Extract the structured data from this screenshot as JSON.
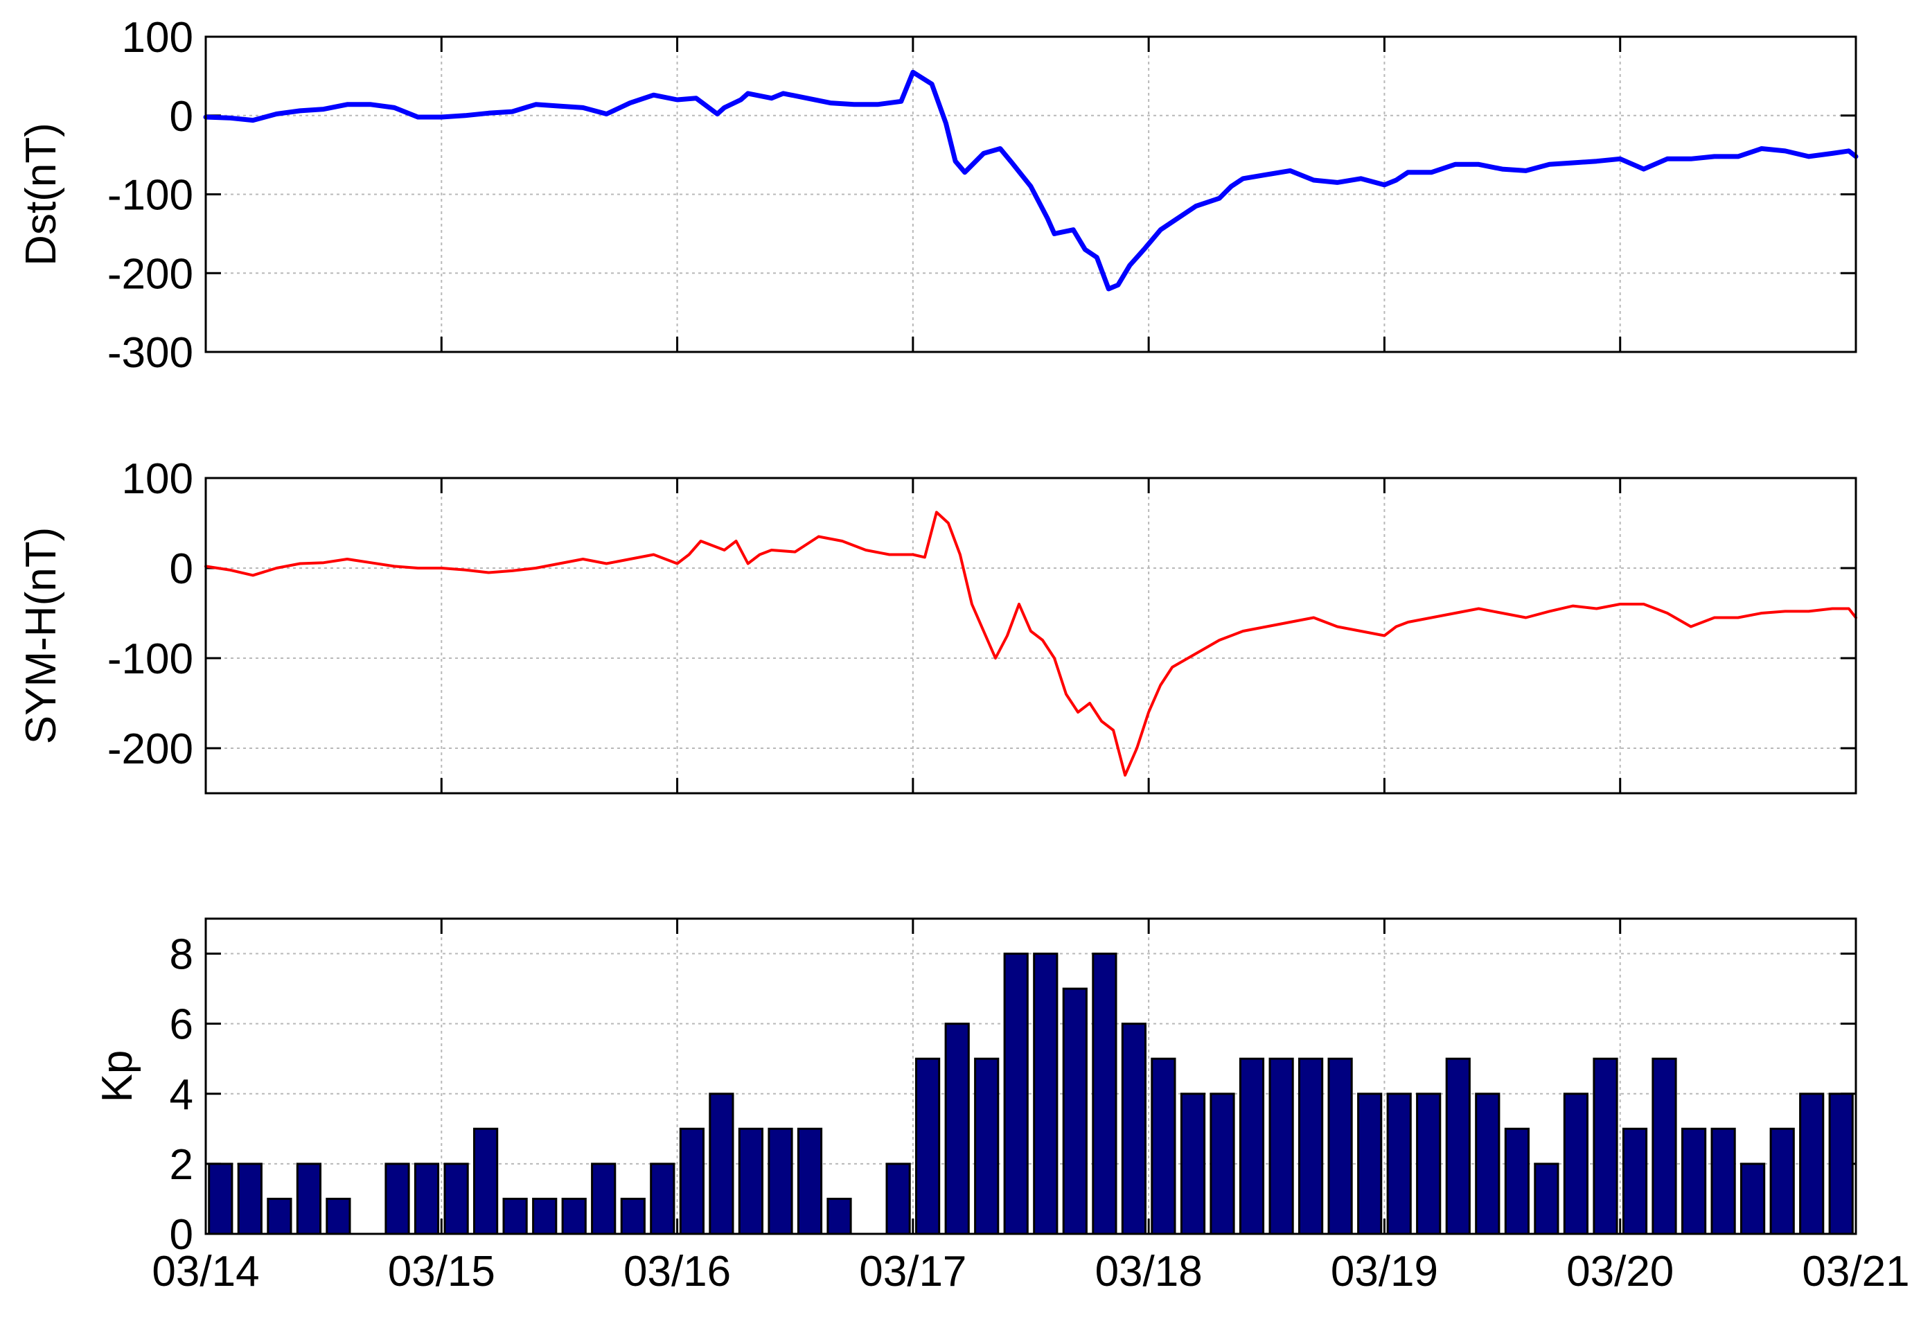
{
  "chart_data": [
    {
      "type": "line",
      "ylabel": "Dst(nT)",
      "xlim": [
        "03/14",
        "03/21"
      ],
      "ylim": [
        -300,
        100
      ],
      "yticks": [
        100,
        0,
        -100,
        -200,
        -300
      ],
      "yticklabels": [
        "100",
        "0",
        "-100",
        "-200",
        "-300"
      ],
      "grid": true,
      "color": "#0000ff",
      "series": [
        {
          "x": [
            0,
            0.1,
            0.2,
            0.3,
            0.4,
            0.5,
            0.6,
            0.7,
            0.8,
            0.9,
            1.0,
            1.1,
            1.2,
            1.3,
            1.4,
            1.5,
            1.6,
            1.7,
            1.8,
            1.9,
            2.0,
            2.08,
            2.17,
            2.2,
            2.27,
            2.3,
            2.4,
            2.45,
            2.55,
            2.65,
            2.75,
            2.85,
            2.95,
            3.0,
            3.08,
            3.14,
            3.18,
            3.22,
            3.3,
            3.37,
            3.42,
            3.5,
            3.57,
            3.6,
            3.68,
            3.73,
            3.78,
            3.83,
            3.87,
            3.92,
            3.98,
            4.05,
            4.1,
            4.2,
            4.3,
            4.35,
            4.4,
            4.5,
            4.6,
            4.7,
            4.8,
            4.9,
            5.0,
            5.05,
            5.1,
            5.2,
            5.3,
            5.4,
            5.5,
            5.6,
            5.7,
            5.8,
            5.9,
            6.0,
            6.1,
            6.2,
            6.3,
            6.4,
            6.5,
            6.6,
            6.7,
            6.8,
            6.9,
            6.97,
            7.0
          ],
          "y": [
            -2,
            -3,
            -6,
            2,
            6,
            8,
            14,
            14,
            10,
            -2,
            -2,
            0,
            3,
            5,
            14,
            12,
            10,
            2,
            16,
            26,
            20,
            22,
            2,
            10,
            20,
            28,
            22,
            28,
            22,
            16,
            14,
            14,
            18,
            55,
            40,
            -10,
            -58,
            -72,
            -48,
            -42,
            -60,
            -90,
            -130,
            -150,
            -145,
            -170,
            -180,
            -220,
            -215,
            -190,
            -170,
            -145,
            -135,
            -115,
            -105,
            -90,
            -80,
            -75,
            -70,
            -82,
            -85,
            -80,
            -88,
            -82,
            -72,
            -72,
            -62,
            -62,
            -68,
            -70,
            -62,
            -60,
            -58,
            -55,
            -68,
            -55,
            -55,
            -52,
            -52,
            -42,
            -45,
            -52,
            -48,
            -45,
            -52
          ]
        }
      ]
    },
    {
      "type": "line",
      "ylabel": "SYM-H(nT)",
      "xlim": [
        "03/14",
        "03/21"
      ],
      "ylim": [
        -250,
        100
      ],
      "yticks": [
        100,
        0,
        -100,
        -200
      ],
      "yticklabels": [
        "100",
        "0",
        "-100",
        "-200"
      ],
      "grid": true,
      "color": "#ff0000",
      "series": [
        {
          "x": [
            0,
            0.1,
            0.2,
            0.3,
            0.4,
            0.5,
            0.6,
            0.7,
            0.8,
            0.9,
            1.0,
            1.1,
            1.2,
            1.3,
            1.4,
            1.5,
            1.6,
            1.7,
            1.8,
            1.9,
            2.0,
            2.05,
            2.1,
            2.15,
            2.2,
            2.25,
            2.3,
            2.35,
            2.4,
            2.5,
            2.6,
            2.7,
            2.8,
            2.9,
            3.0,
            3.05,
            3.1,
            3.15,
            3.2,
            3.25,
            3.3,
            3.35,
            3.4,
            3.45,
            3.5,
            3.55,
            3.6,
            3.65,
            3.7,
            3.75,
            3.8,
            3.85,
            3.9,
            3.95,
            4.0,
            4.05,
            4.1,
            4.2,
            4.3,
            4.4,
            4.5,
            4.6,
            4.7,
            4.8,
            4.9,
            5.0,
            5.05,
            5.1,
            5.2,
            5.3,
            5.4,
            5.5,
            5.6,
            5.7,
            5.8,
            5.9,
            6.0,
            6.1,
            6.2,
            6.3,
            6.4,
            6.5,
            6.6,
            6.7,
            6.8,
            6.9,
            6.97,
            7.0
          ],
          "y": [
            2,
            -2,
            -8,
            0,
            5,
            6,
            10,
            6,
            2,
            0,
            0,
            -2,
            -5,
            -3,
            0,
            5,
            10,
            5,
            10,
            15,
            5,
            15,
            30,
            25,
            20,
            30,
            5,
            15,
            20,
            18,
            35,
            30,
            20,
            15,
            15,
            12,
            62,
            50,
            15,
            -40,
            -70,
            -100,
            -75,
            -40,
            -70,
            -80,
            -100,
            -140,
            -160,
            -150,
            -170,
            -180,
            -230,
            -200,
            -160,
            -130,
            -110,
            -95,
            -80,
            -70,
            -65,
            -60,
            -55,
            -65,
            -70,
            -75,
            -65,
            -60,
            -55,
            -50,
            -45,
            -50,
            -55,
            -48,
            -42,
            -45,
            -40,
            -40,
            -50,
            -65,
            -55,
            -55,
            -50,
            -48,
            -48,
            -45,
            -45,
            -55
          ]
        }
      ]
    },
    {
      "type": "bar",
      "ylabel": "Kp",
      "xlim": [
        "03/14",
        "03/21"
      ],
      "ylim": [
        0,
        9
      ],
      "yticks": [
        0,
        2,
        4,
        6,
        8
      ],
      "yticklabels": [
        "0",
        "2",
        "4",
        "6",
        "8"
      ],
      "xticklabels": [
        "03/14",
        "03/15",
        "03/16",
        "03/17",
        "03/18",
        "03/19",
        "03/20",
        "03/21"
      ],
      "grid": true,
      "color": "#000080",
      "values": [
        2,
        2,
        1,
        2,
        1,
        0,
        2,
        2,
        2,
        3,
        1,
        1,
        1,
        2,
        1,
        2,
        3,
        4,
        3,
        3,
        3,
        1,
        0,
        2,
        5,
        6,
        5,
        8,
        8,
        7,
        8,
        6,
        5,
        4,
        4,
        5,
        5,
        5,
        5,
        4,
        4,
        4,
        5,
        4,
        3,
        2,
        4,
        5,
        3,
        5,
        3,
        3,
        2,
        3,
        4,
        4
      ]
    }
  ]
}
